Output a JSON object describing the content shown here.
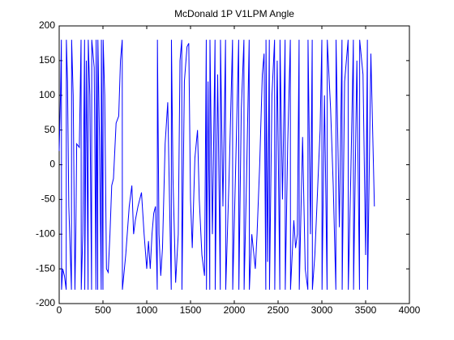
{
  "chart_data": {
    "type": "line",
    "title": "McDonald 1P V1LPM Angle",
    "color": "#0000ff",
    "xlim": [
      0,
      4000
    ],
    "xticks": [
      0,
      500,
      1000,
      1500,
      2000,
      2500,
      3000,
      3500,
      4000
    ],
    "ylim": [
      -200,
      200
    ],
    "yticks": [
      -200,
      -150,
      -100,
      -50,
      0,
      50,
      100,
      150,
      200
    ],
    "x": [
      0,
      15,
      25,
      27,
      40,
      60,
      80,
      82,
      95,
      110,
      140,
      142,
      160,
      180,
      190,
      200,
      230,
      250,
      252,
      270,
      290,
      292,
      310,
      330,
      332,
      350,
      370,
      372,
      400,
      420,
      422,
      440,
      442,
      460,
      480,
      482,
      500,
      502,
      520,
      540,
      560,
      580,
      600,
      620,
      650,
      680,
      700,
      720,
      722,
      760,
      800,
      830,
      850,
      870,
      900,
      940,
      970,
      1000,
      1020,
      1040,
      1060,
      1080,
      1100,
      1120,
      1122,
      1140,
      1160,
      1180,
      1210,
      1240,
      1260,
      1280,
      1282,
      1300,
      1330,
      1360,
      1380,
      1400,
      1402,
      1430,
      1460,
      1480,
      1500,
      1520,
      1550,
      1580,
      1600,
      1630,
      1660,
      1680,
      1682,
      1700,
      1720,
      1722,
      1750,
      1780,
      1782,
      1810,
      1840,
      1842,
      1870,
      1900,
      1902,
      1940,
      1980,
      1982,
      2020,
      2050,
      2052,
      2080,
      2110,
      2112,
      2140,
      2170,
      2172,
      2200,
      2240,
      2260,
      2290,
      2320,
      2340,
      2360,
      2362,
      2380,
      2400,
      2402,
      2430,
      2460,
      2462,
      2490,
      2520,
      2522,
      2550,
      2580,
      2582,
      2610,
      2640,
      2642,
      2680,
      2700,
      2720,
      2740,
      2742,
      2780,
      2810,
      2840,
      2842,
      2870,
      2890,
      2892,
      2920,
      2950,
      2980,
      3000,
      3002,
      3030,
      3060,
      3062,
      3100,
      3130,
      3160,
      3162,
      3200,
      3230,
      3232,
      3260,
      3300,
      3302,
      3330,
      3360,
      3362,
      3400,
      3430,
      3432,
      3470,
      3500,
      3520,
      3522,
      3560,
      3580,
      3600
    ],
    "values": [
      20,
      100,
      180,
      -180,
      -150,
      -160,
      -180,
      180,
      120,
      -60,
      -180,
      180,
      100,
      -180,
      -100,
      30,
      25,
      180,
      -180,
      -100,
      180,
      -180,
      150,
      -180,
      180,
      100,
      -180,
      180,
      140,
      -180,
      180,
      -180,
      180,
      40,
      -180,
      180,
      -180,
      180,
      100,
      -150,
      -155,
      -100,
      -30,
      -20,
      60,
      70,
      150,
      180,
      -180,
      -130,
      -60,
      -30,
      -100,
      -80,
      -60,
      -40,
      -100,
      -150,
      -110,
      -150,
      -100,
      -70,
      -60,
      -180,
      180,
      -100,
      -160,
      -120,
      30,
      90,
      -50,
      -180,
      180,
      -20,
      -170,
      -100,
      150,
      180,
      -180,
      120,
      170,
      175,
      -50,
      -120,
      10,
      50,
      -50,
      -130,
      -160,
      180,
      -180,
      120,
      -180,
      180,
      -100,
      180,
      -180,
      130,
      -180,
      180,
      -60,
      180,
      -180,
      -20,
      180,
      -180,
      20,
      180,
      -180,
      80,
      180,
      -180,
      -20,
      180,
      -180,
      -100,
      -150,
      -100,
      0,
      130,
      160,
      -180,
      180,
      -140,
      180,
      -180,
      100,
      180,
      -180,
      150,
      -180,
      180,
      -50,
      180,
      -180,
      30,
      180,
      -180,
      -80,
      -120,
      -100,
      180,
      -180,
      40,
      -150,
      -180,
      180,
      -100,
      180,
      -180,
      -130,
      -40,
      50,
      180,
      -180,
      100,
      -180,
      180,
      80,
      -30,
      -180,
      180,
      -90,
      180,
      -180,
      120,
      180,
      -180,
      -20,
      180,
      -180,
      150,
      -180,
      180,
      130,
      -130,
      180,
      -180,
      160,
      50,
      -60
    ]
  }
}
